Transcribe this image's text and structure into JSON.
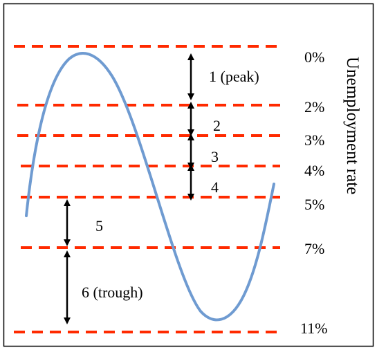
{
  "colors": {
    "dashed_line": "#ff2a00",
    "curve": "#6f9bd1",
    "arrow": "#000000",
    "frame": "#000000"
  },
  "axis": {
    "label": "Unemployment rate"
  },
  "levels": [
    {
      "label": "0%",
      "value": 0
    },
    {
      "label": "2%",
      "value": 2
    },
    {
      "label": "3%",
      "value": 3
    },
    {
      "label": "4%",
      "value": 4
    },
    {
      "label": "5%",
      "value": 5
    },
    {
      "label": "7%",
      "value": 7
    },
    {
      "label": "11%",
      "value": 11
    }
  ],
  "zones": [
    {
      "label": "1 (peak)",
      "from": 0,
      "to": 2
    },
    {
      "label": "2",
      "from": 2,
      "to": 3
    },
    {
      "label": "3",
      "from": 3,
      "to": 4
    },
    {
      "label": "4",
      "from": 4,
      "to": 5
    },
    {
      "label": "5",
      "from": 5,
      "to": 7
    },
    {
      "label": "6 (trough)",
      "from": 7,
      "to": 11
    }
  ]
}
